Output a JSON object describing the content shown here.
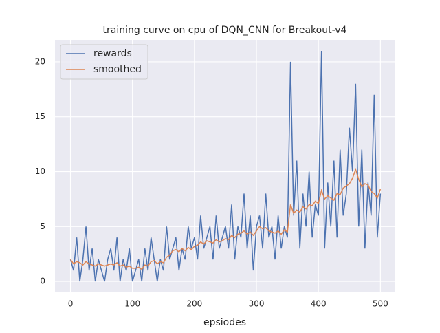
{
  "chart_data": {
    "type": "line",
    "title": "training curve on cpu of DQN_CNN for Breakout-v4",
    "xlabel": "epsiodes",
    "x": [
      0,
      5,
      10,
      15,
      20,
      25,
      30,
      35,
      40,
      45,
      50,
      55,
      60,
      65,
      70,
      75,
      80,
      85,
      90,
      95,
      100,
      105,
      110,
      115,
      120,
      125,
      130,
      135,
      140,
      145,
      150,
      155,
      160,
      165,
      170,
      175,
      180,
      185,
      190,
      195,
      200,
      205,
      210,
      215,
      220,
      225,
      230,
      235,
      240,
      245,
      250,
      255,
      260,
      265,
      270,
      275,
      280,
      285,
      290,
      295,
      300,
      305,
      310,
      315,
      320,
      325,
      330,
      335,
      340,
      345,
      350,
      355,
      360,
      365,
      370,
      375,
      380,
      385,
      390,
      395,
      400,
      405,
      410,
      415,
      420,
      425,
      430,
      435,
      440,
      445,
      450,
      455,
      460,
      465,
      470,
      475,
      480,
      485,
      490,
      495,
      500
    ],
    "series": [
      {
        "name": "rewards",
        "color": "#4c72b0",
        "values": [
          2,
          1,
          4,
          0,
          2,
          5,
          1,
          3,
          0,
          2,
          1,
          0,
          2,
          3,
          1,
          4,
          0,
          2,
          1,
          3,
          0,
          1,
          2,
          0,
          3,
          1,
          4,
          2,
          0,
          2,
          1,
          5,
          2,
          3,
          4,
          1,
          3,
          2,
          5,
          3,
          4,
          2,
          6,
          3,
          4,
          5,
          2,
          6,
          3,
          4,
          5,
          3,
          7,
          2,
          5,
          4,
          8,
          3,
          6,
          1,
          5,
          6,
          3,
          8,
          4,
          5,
          2,
          6,
          3,
          5,
          4,
          20,
          6,
          11,
          3,
          8,
          5,
          10,
          4,
          7,
          6,
          21,
          3,
          9,
          5,
          11,
          4,
          12,
          6,
          8,
          14,
          10,
          18,
          5,
          12,
          3,
          9,
          6,
          17,
          4,
          8
        ]
      },
      {
        "name": "smoothed",
        "color": "#dd8452",
        "values": [
          2,
          1.6,
          1.8,
          1.7,
          1.5,
          1.8,
          1.6,
          1.5,
          1.4,
          1.6,
          1.5,
          1.4,
          1.5,
          1.6,
          1.5,
          1.7,
          1.4,
          1.5,
          1.3,
          1.4,
          1.2,
          1.2,
          1.3,
          1.1,
          1.5,
          1.4,
          1.8,
          1.9,
          1.6,
          1.8,
          1.7,
          2.2,
          2.4,
          2.8,
          2.9,
          2.7,
          3.0,
          2.8,
          3.1,
          2.9,
          3.2,
          3.3,
          3.6,
          3.4,
          3.7,
          3.6,
          3.5,
          3.8,
          3.6,
          3.7,
          3.9,
          3.8,
          4.2,
          4.0,
          4.3,
          4.4,
          4.6,
          4.3,
          4.5,
          4.2,
          4.6,
          5.0,
          4.8,
          4.9,
          4.6,
          4.5,
          4.4,
          4.6,
          4.3,
          4.7,
          4.5,
          7.0,
          6.2,
          6.5,
          6.3,
          6.8,
          6.6,
          7.0,
          6.9,
          7.3,
          7.1,
          8.3,
          7.5,
          7.8,
          7.6,
          7.4,
          8.0,
          7.9,
          8.5,
          8.7,
          8.9,
          9.4,
          10.2,
          9.3,
          8.6,
          8.9,
          8.8,
          8.2,
          8.0,
          7.6,
          8.4
        ]
      }
    ],
    "xlim": [
      -25,
      524
    ],
    "ylim": [
      -1,
      22
    ],
    "xticks": [
      0,
      100,
      200,
      300,
      400,
      500
    ],
    "yticks": [
      0,
      5,
      10,
      15,
      20
    ],
    "grid": true,
    "legend": "upper left"
  }
}
